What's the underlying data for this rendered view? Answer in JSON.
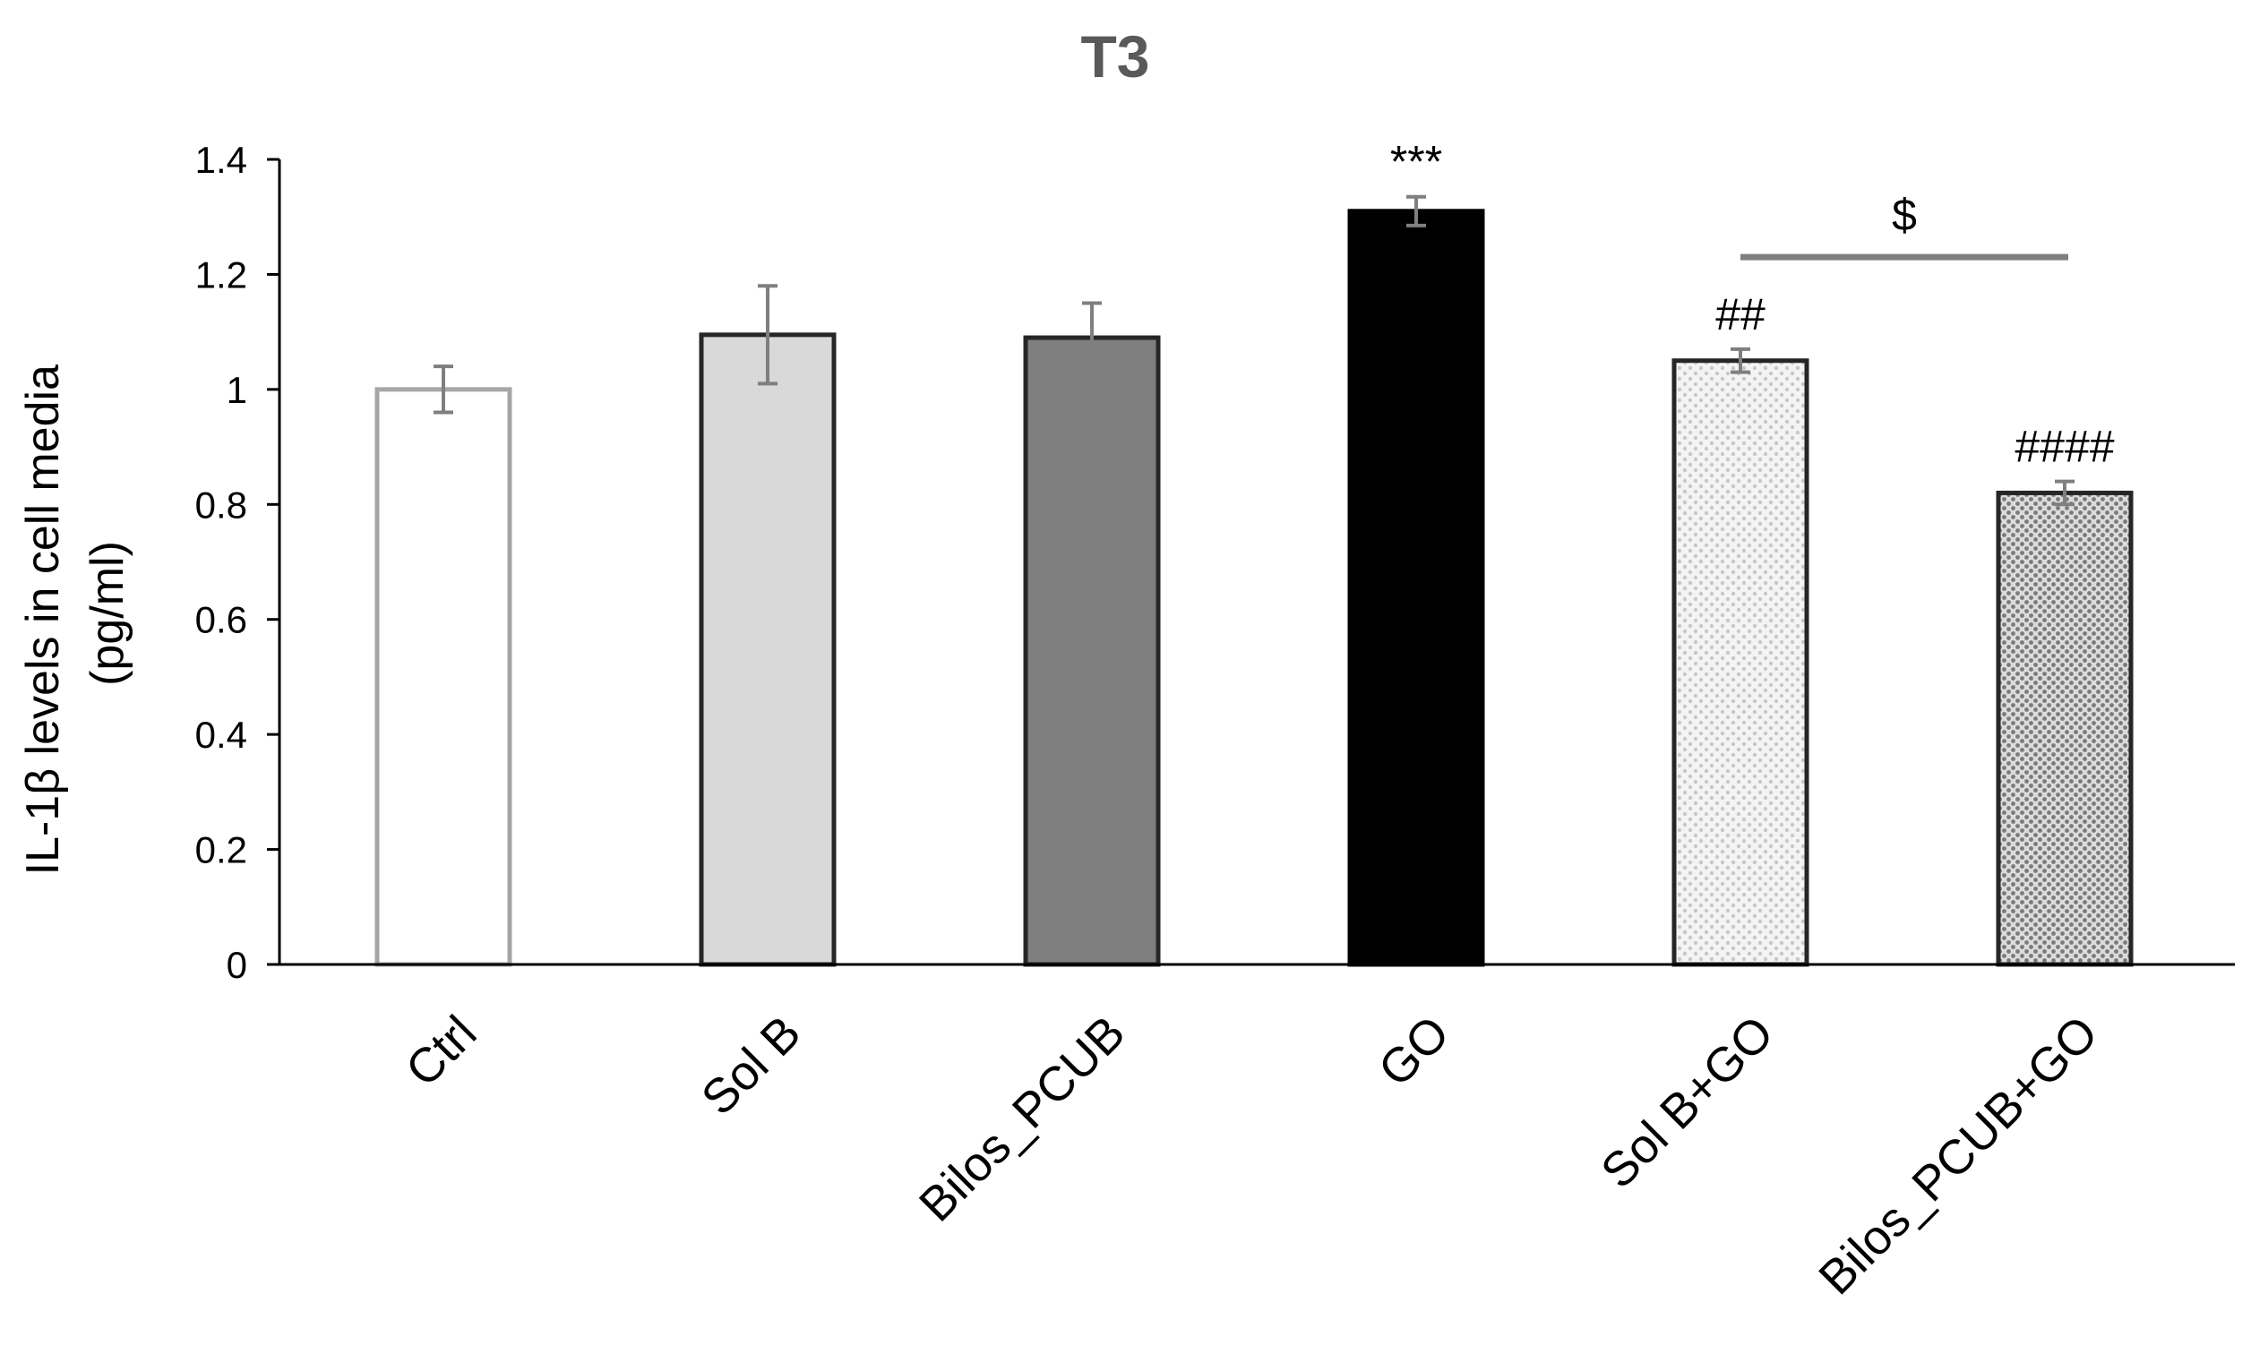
{
  "chart_data": {
    "type": "bar",
    "title": "T3",
    "xlabel": "",
    "ylabel": [
      "IL-1β levels in cell media",
      "(pg/ml)"
    ],
    "ylim": [
      0,
      1.4
    ],
    "yticks": [
      0,
      0.2,
      0.4,
      0.6,
      0.8,
      1,
      1.2,
      1.4
    ],
    "ytick_labels": [
      "0",
      "0.2",
      "0.4",
      "0.6",
      "0.8",
      "1",
      "1.2",
      "1.4"
    ],
    "grid": false,
    "categories": [
      "Ctrl",
      "Sol B",
      "Bilos_PCUB",
      "GO",
      "Sol B+GO",
      "Bilos_PCUB+GO"
    ],
    "values": [
      1.0,
      1.095,
      1.09,
      1.31,
      1.05,
      0.82
    ],
    "errors": [
      0.04,
      0.085,
      0.06,
      0.025,
      0.02,
      0.02
    ],
    "bar_styles": [
      {
        "fill": "#ffffff",
        "stroke": "#a6a6a6",
        "pattern": "none"
      },
      {
        "fill": "#d9d9d9",
        "stroke": "#262626",
        "pattern": "none"
      },
      {
        "fill": "#7f7f7f",
        "stroke": "#262626",
        "pattern": "none"
      },
      {
        "fill": "#000000",
        "stroke": "#000000",
        "pattern": "none"
      },
      {
        "fill": "#f2f2f2",
        "stroke": "#262626",
        "pattern": "dots-light"
      },
      {
        "fill": "#d0d0d0",
        "stroke": "#262626",
        "pattern": "dots-dark"
      }
    ],
    "annotations": [
      {
        "category": "GO",
        "text": "***"
      },
      {
        "category": "Sol B+GO",
        "text": "##"
      },
      {
        "category": "Bilos_PCUB+GO",
        "text": "####"
      }
    ],
    "comparison": {
      "from": "Sol B+GO",
      "to": "Bilos_PCUB+GO",
      "text": "$",
      "y": 1.23
    },
    "colors": {
      "axis": "#000000",
      "error_bar": "#7f7f7f",
      "comparison_line": "#7f7f7f",
      "title": "#595959"
    }
  }
}
